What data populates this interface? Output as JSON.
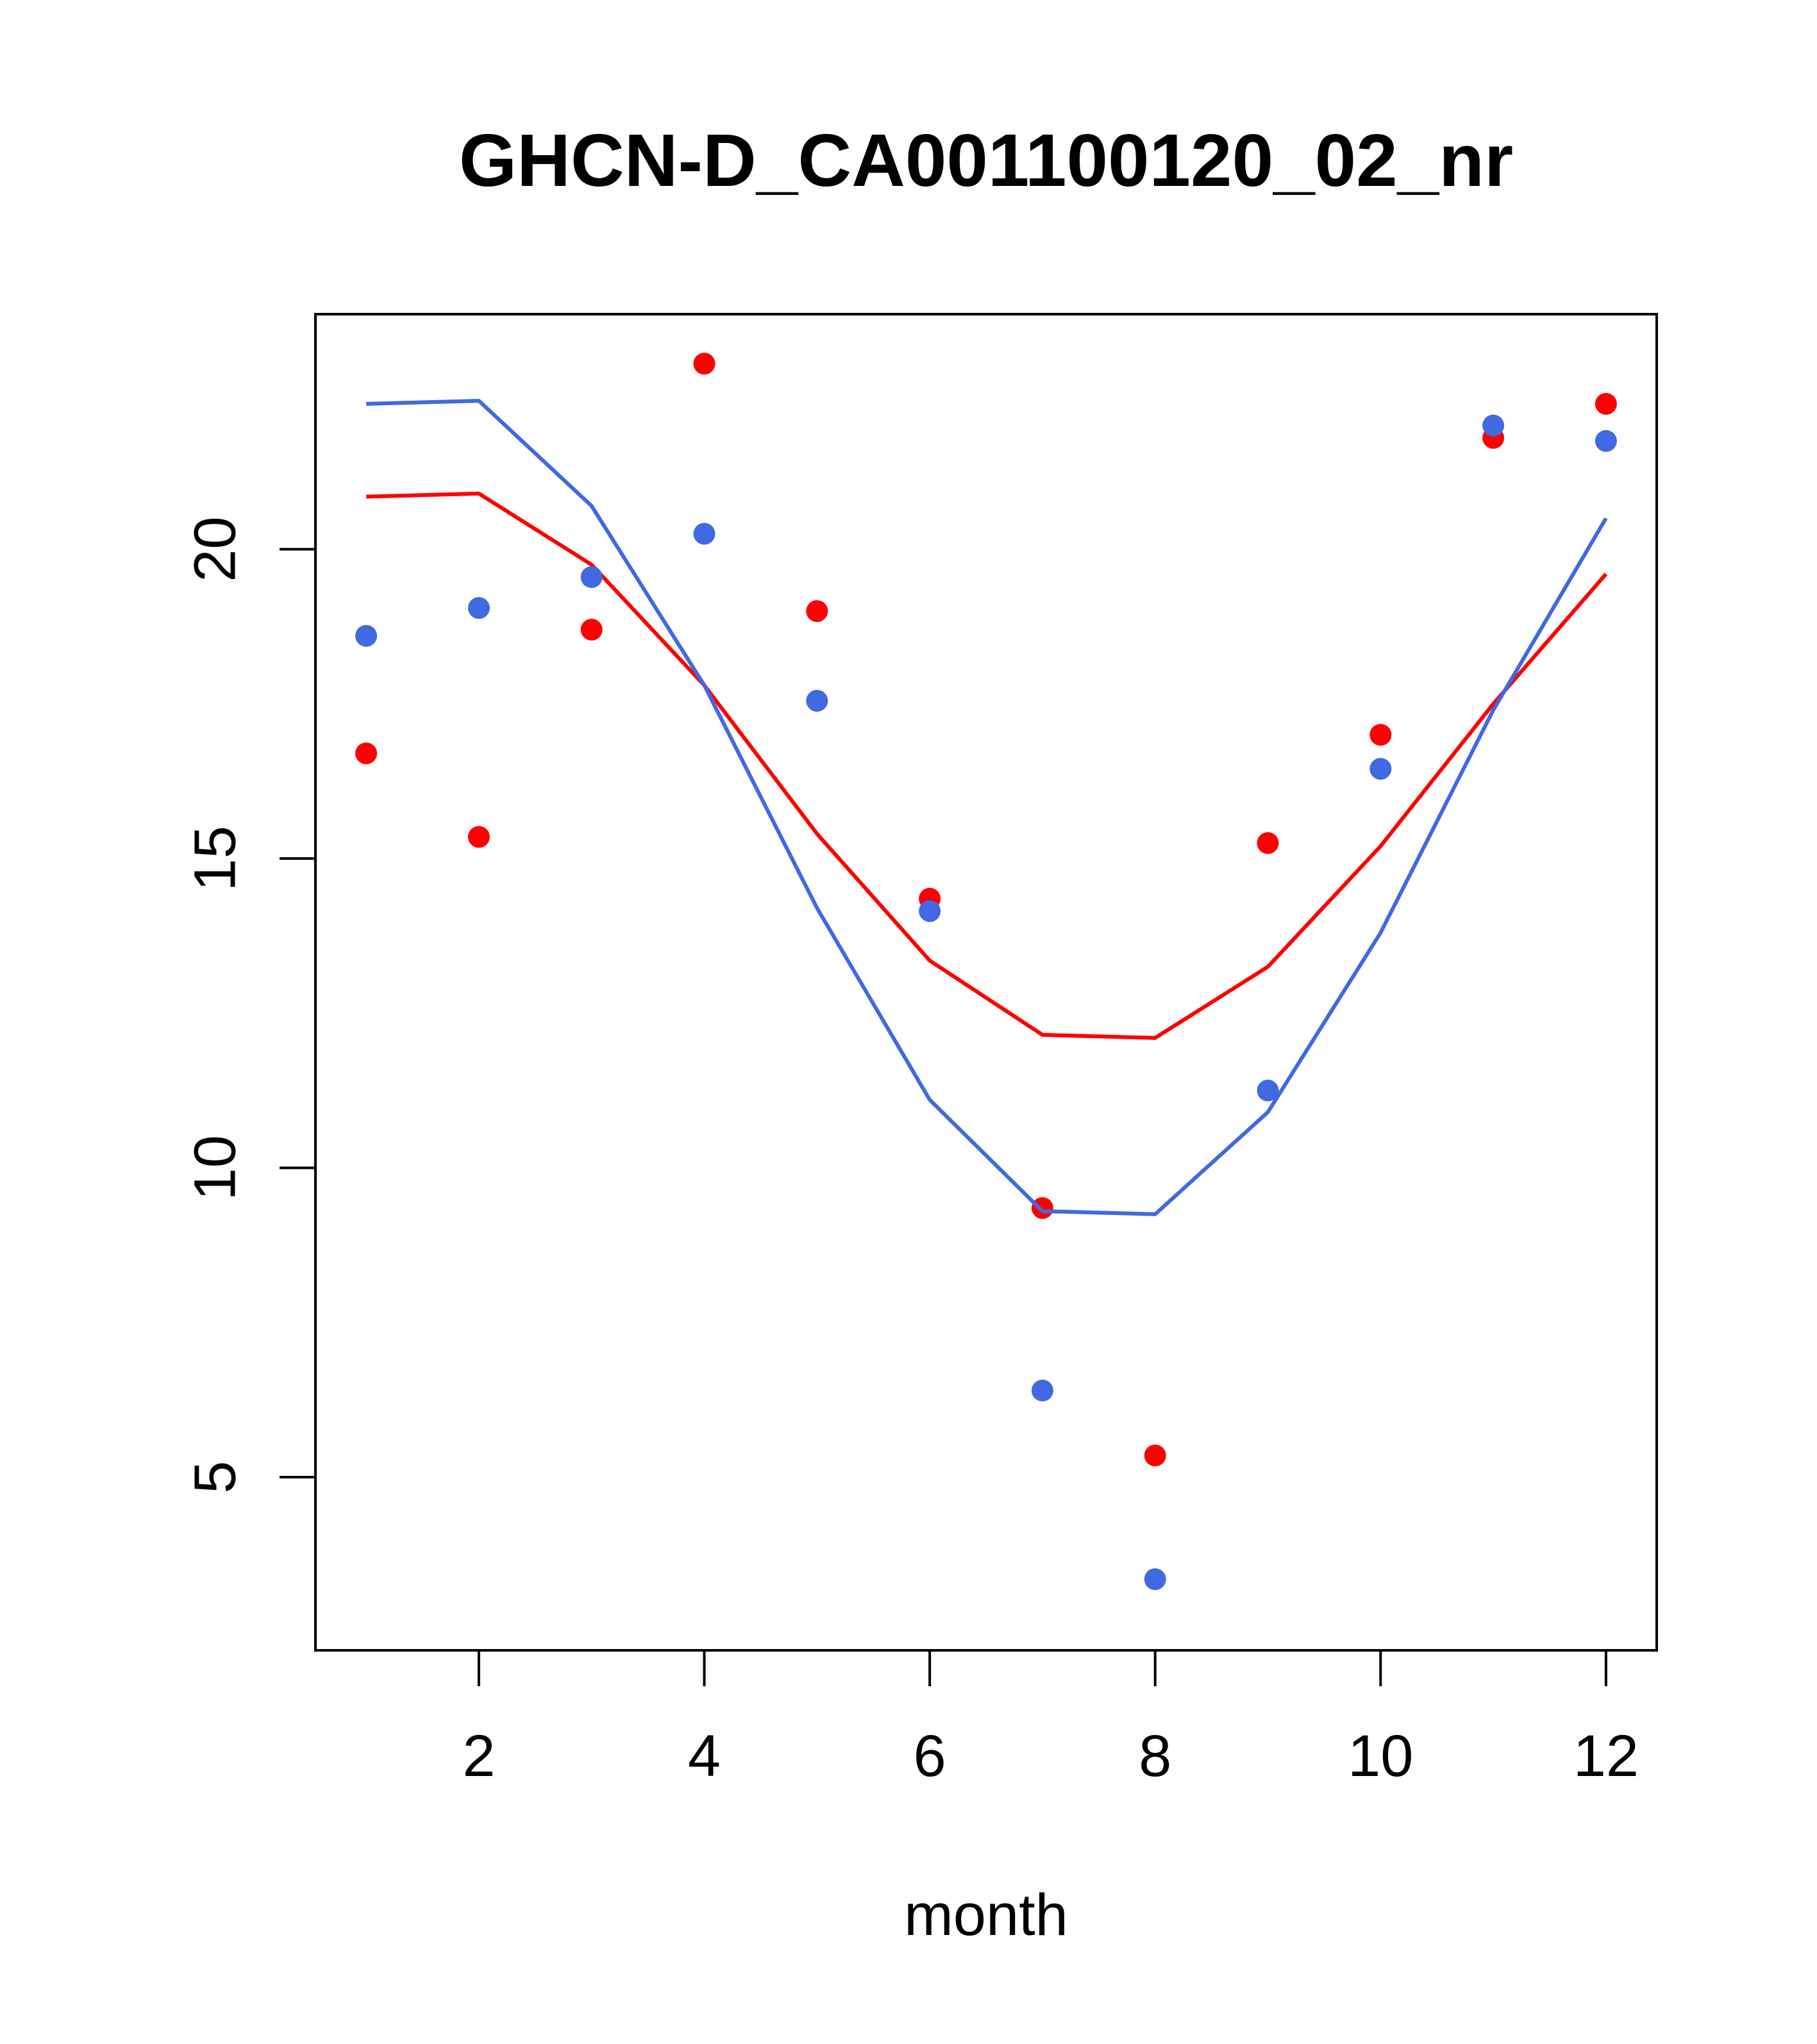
{
  "chart_data": {
    "type": "scatter",
    "title": "GHCN-D_CA001100120_02_nr",
    "xlabel": "month",
    "ylabel": "",
    "xlim": [
      0.55,
      12.45
    ],
    "ylim": [
      2.2,
      23.8
    ],
    "x_ticks": [
      2,
      4,
      6,
      8,
      10,
      12
    ],
    "y_ticks": [
      5,
      10,
      15,
      20
    ],
    "grid": false,
    "legend": "none",
    "x": [
      1,
      2,
      3,
      4,
      5,
      6,
      7,
      8,
      9,
      10,
      11,
      12
    ],
    "series": [
      {
        "color": "#ff0000",
        "points": [
          16.7,
          15.35,
          18.7,
          23.0,
          19.0,
          14.35,
          9.35,
          5.35,
          15.25,
          17.0,
          21.8,
          22.35
        ],
        "line": [
          20.85,
          20.9,
          19.75,
          17.8,
          15.4,
          13.35,
          12.15,
          12.1,
          13.25,
          15.2,
          17.5,
          19.6
        ]
      },
      {
        "color": "#4169e1",
        "points": [
          18.6,
          19.05,
          19.55,
          20.25,
          17.55,
          14.15,
          6.4,
          3.35,
          11.25,
          16.45,
          22.0,
          21.75
        ],
        "line": [
          22.35,
          22.4,
          20.7,
          17.8,
          14.2,
          11.1,
          9.3,
          9.25,
          10.9,
          13.8,
          17.4,
          20.5
        ]
      }
    ]
  }
}
